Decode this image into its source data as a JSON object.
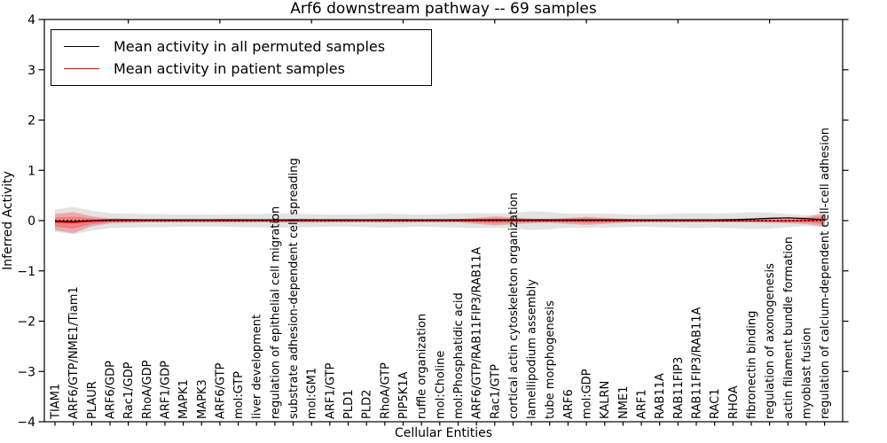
{
  "chart_data": {
    "type": "line",
    "title": "Arf6 downstream pathway -- 69 samples",
    "xlabel": "Cellular Entities",
    "ylabel": "Inferred Activity",
    "ylim": [
      -4,
      4
    ],
    "grid": false,
    "yticks": {
      "values": [
        4,
        3,
        2,
        1,
        0,
        -1,
        -2,
        -3,
        -4
      ],
      "labels": [
        "4",
        "3",
        "2",
        "1",
        "0",
        "−1",
        "−2",
        "−3",
        "−4"
      ]
    },
    "top_tick_indices": [
      4,
      9,
      14,
      19,
      24,
      29,
      34,
      39
    ],
    "legend": {
      "position": "upper left",
      "items": [
        {
          "label": "Mean activity in all permuted samples",
          "color": "#000000"
        },
        {
          "label": "Mean activity in patient samples",
          "color": "#ff0000"
        }
      ]
    },
    "categories": [
      "TIAM1",
      "ARF6/GTP/NME1/Tiam1",
      "PLAUR",
      "ARF6/GDP",
      "Rac1/GDP",
      "RhoA/GDP",
      "ARF1/GDP",
      "MAPK1",
      "MAPK3",
      "ARF6/GTP",
      "mol:GTP",
      "liver development",
      "regulation of epithelial cell migration",
      "substrate adhesion-dependent cell spreading",
      "mol:GM1",
      "ARF1/GTP",
      "PLD1",
      "PLD2",
      "RhoA/GTP",
      "PIP5K1A",
      "ruffle organization",
      "mol:Choline",
      "mol:Phosphatidic acid",
      "ARF6/GTP/RAB11FIP3/RAB11A",
      "Rac1/GTP",
      "cortical actin cytoskeleton organization",
      "lamellipodium assembly",
      "tube morphogenesis",
      "ARF6",
      "mol:GDP",
      "KALRN",
      "NME1",
      "ARF1",
      "RAB11A",
      "RAB11FIP3",
      "RAB11FIP3/RAB11A",
      "RAC1",
      "RHOA",
      "fibronectin binding",
      "regulation of axonogenesis",
      "actin filament bundle formation",
      "myoblast fusion",
      "regulation of calcium-dependent cell-cell adhesion"
    ],
    "series": [
      {
        "name": "Mean activity in all permuted samples",
        "color": "#000000",
        "style": "solid",
        "values": [
          -0.01,
          -0.02,
          0,
          0.015,
          0.015,
          0.015,
          0.015,
          0.015,
          0.015,
          0.015,
          0.015,
          0.015,
          0.015,
          0.015,
          0.015,
          0.015,
          0.015,
          0.015,
          0.015,
          0.015,
          0.015,
          0.015,
          0.015,
          0.015,
          0.015,
          0.015,
          0.015,
          0.015,
          0.015,
          0.015,
          0.015,
          0.015,
          0.015,
          0.015,
          0.015,
          0.015,
          0.015,
          0.02,
          0.03,
          0.045,
          0.055,
          0.04,
          0.015
        ]
      },
      {
        "name": "Mean activity in patient samples",
        "color": "#ff0000",
        "style": "solid",
        "values": [
          -0.03,
          -0.04,
          -0.015,
          -0.005,
          -0.005,
          -0.005,
          -0.005,
          -0.005,
          -0.005,
          -0.005,
          -0.005,
          -0.005,
          -0.005,
          -0.005,
          -0.005,
          -0.005,
          -0.005,
          -0.005,
          -0.005,
          -0.005,
          -0.005,
          -0.005,
          -0.005,
          -0.005,
          -0.005,
          -0.005,
          -0.005,
          -0.005,
          -0.005,
          -0.005,
          -0.005,
          -0.005,
          -0.005,
          -0.005,
          -0.005,
          -0.005,
          -0.005,
          -0.005,
          -0.005,
          -0.005,
          -0.005,
          0,
          0.01
        ]
      },
      {
        "name": "zero baseline",
        "color": "#000000",
        "style": "dotted",
        "values": [
          0,
          0,
          0,
          0,
          0,
          0,
          0,
          0,
          0,
          0,
          0,
          0,
          0,
          0,
          0,
          0,
          0,
          0,
          0,
          0,
          0,
          0,
          0,
          0,
          0,
          0,
          0,
          0,
          0,
          0,
          0,
          0,
          0,
          0,
          0,
          0,
          0,
          0,
          0,
          0,
          0,
          0,
          0
        ]
      }
    ],
    "bands": [
      {
        "name": "permuted-std-band",
        "color": "#808080",
        "opacity": 0.22,
        "center_series": null,
        "half_widths": [
          0.22,
          0.27,
          0.2,
          0.15,
          0.14,
          0.13,
          0.13,
          0.12,
          0.12,
          0.12,
          0.13,
          0.13,
          0.14,
          0.14,
          0.13,
          0.12,
          0.12,
          0.13,
          0.14,
          0.13,
          0.12,
          0.13,
          0.14,
          0.15,
          0.14,
          0.15,
          0.19,
          0.17,
          0.14,
          0.14,
          0.14,
          0.13,
          0.12,
          0.13,
          0.14,
          0.15,
          0.14,
          0.15,
          0.17,
          0.16,
          0.13,
          0.11,
          0.13
        ]
      },
      {
        "name": "patient-std-band-outer",
        "color": "#ff0000",
        "opacity": 0.25,
        "center_series": "Mean activity in patient samples",
        "half_widths": [
          0.16,
          0.21,
          0.1,
          0.05,
          0.04,
          0.03,
          0.03,
          0.03,
          0.03,
          0.035,
          0.035,
          0.03,
          0.03,
          0.035,
          0.035,
          0.03,
          0.03,
          0.03,
          0.035,
          0.035,
          0.03,
          0.03,
          0.035,
          0.06,
          0.09,
          0.07,
          0.045,
          0.04,
          0.06,
          0.08,
          0.06,
          0.04,
          0.03,
          0.03,
          0.03,
          0.03,
          0.03,
          0.03,
          0.03,
          0.04,
          0.05,
          0.07,
          0.13
        ]
      },
      {
        "name": "patient-std-band-inner",
        "color": "#ff0000",
        "opacity": 0.25,
        "center_series": "Mean activity in patient samples",
        "half_widths": [
          0.09,
          0.12,
          0.06,
          0.03,
          0.025,
          0.02,
          0.02,
          0.02,
          0.02,
          0.02,
          0.02,
          0.02,
          0.02,
          0.02,
          0.02,
          0.02,
          0.02,
          0.02,
          0.02,
          0.02,
          0.02,
          0.02,
          0.02,
          0.035,
          0.05,
          0.04,
          0.027,
          0.025,
          0.035,
          0.045,
          0.035,
          0.025,
          0.02,
          0.02,
          0.02,
          0.02,
          0.02,
          0.02,
          0.02,
          0.025,
          0.03,
          0.04,
          0.075
        ]
      }
    ]
  }
}
